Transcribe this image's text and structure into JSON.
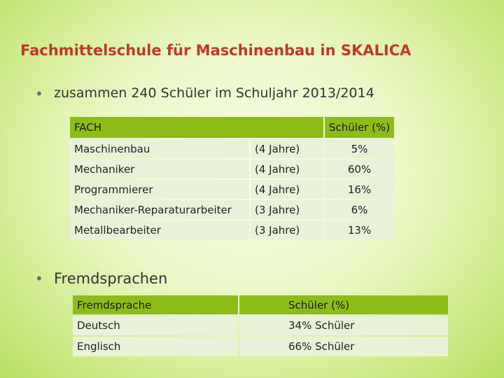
{
  "title": "Fachmittelschule für Maschinenbau in SKALICA",
  "bullet1": "zusammen 240 Schüler im Schuljahr 2013/2014",
  "table1": {
    "headers": {
      "fach": "FACH",
      "pct": "Schüler (%)"
    },
    "rows": [
      {
        "fach": "Maschinenbau",
        "dauer": "(4 Jahre)",
        "pct": "5%"
      },
      {
        "fach": "Mechaniker",
        "dauer": "(4 Jahre)",
        "pct": "60%"
      },
      {
        "fach": "Programmierer",
        "dauer": "(4 Jahre)",
        "pct": "16%"
      },
      {
        "fach": "Mechaniker-Reparaturarbeiter",
        "dauer": "(3 Jahre)",
        "pct": "6%"
      },
      {
        "fach": "Metallbearbeiter",
        "dauer": "(3 Jahre)",
        "pct": "13%"
      }
    ]
  },
  "bullet2": "Fremdsprachen",
  "table2": {
    "headers": {
      "lang": "Fremdsprache",
      "pct": "Schüler (%)"
    },
    "rows": [
      {
        "lang": "Deutsch",
        "pct": "34% Schüler"
      },
      {
        "lang": "Englisch",
        "pct": "66% Schüler"
      }
    ]
  },
  "colors": {
    "title": "#c0392b",
    "header": "#8bbd16",
    "cell": "#e8f2d8"
  }
}
